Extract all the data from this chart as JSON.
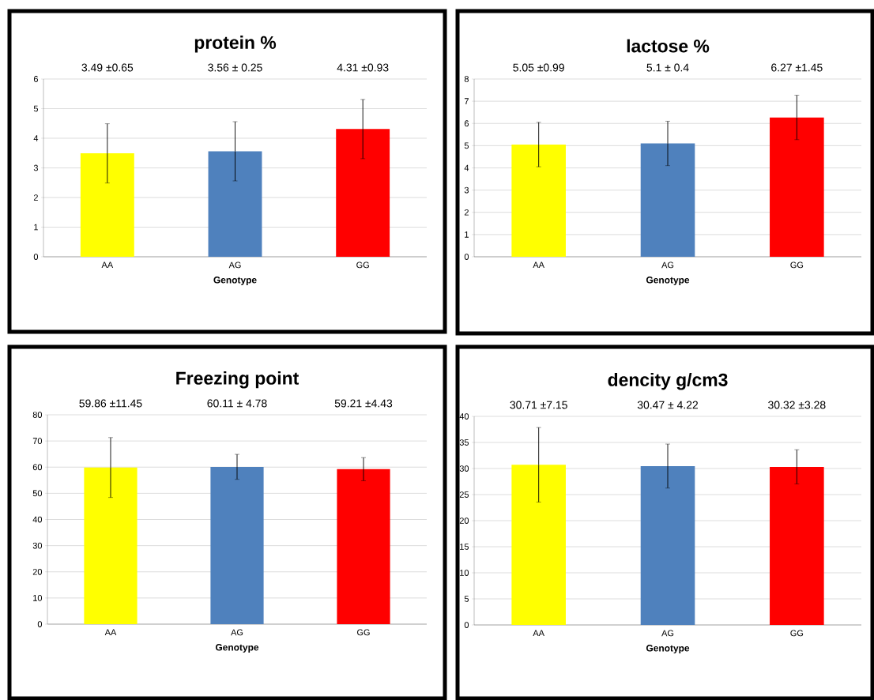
{
  "chart_data": [
    {
      "type": "bar",
      "title": "protein %",
      "xlabel": "Genotype",
      "categories": [
        "AA",
        "AG",
        "GG"
      ],
      "values": [
        3.49,
        3.56,
        4.31
      ],
      "errors": [
        1,
        1,
        1
      ],
      "annotations": [
        "3.49 ±0.65",
        "3.56 ± 0.25",
        "4.31 ±0.93"
      ],
      "colors": [
        "#ffff00",
        "#4f81bd",
        "#ff0000"
      ],
      "ylim": [
        0,
        6
      ],
      "yticks": [
        0,
        1,
        2,
        3,
        4,
        5,
        6
      ],
      "grid": "y"
    },
    {
      "type": "bar",
      "title": "lactose %",
      "xlabel": "Genotype",
      "categories": [
        "AA",
        "AG",
        "GG"
      ],
      "values": [
        5.05,
        5.1,
        6.27
      ],
      "errors": [
        1,
        1,
        1
      ],
      "annotations": [
        "5.05 ±0.99",
        "5.1 ± 0.4",
        "6.27 ±1.45"
      ],
      "colors": [
        "#ffff00",
        "#4f81bd",
        "#ff0000"
      ],
      "ylim": [
        0,
        8
      ],
      "yticks": [
        0,
        1,
        2,
        3,
        4,
        5,
        6,
        7,
        8
      ],
      "grid": "y"
    },
    {
      "type": "bar",
      "title": "Freezing point",
      "xlabel": "Genotype",
      "categories": [
        "AA",
        "AG",
        "GG"
      ],
      "values": [
        59.86,
        60.11,
        59.21
      ],
      "errors": [
        11.45,
        4.78,
        4.43
      ],
      "annotations": [
        "59.86 ±11.45",
        "60.11 ± 4.78",
        "59.21 ±4.43"
      ],
      "colors": [
        "#ffff00",
        "#4f81bd",
        "#ff0000"
      ],
      "ylim": [
        0,
        80
      ],
      "yticks": [
        0,
        10,
        20,
        30,
        40,
        50,
        60,
        70,
        80
      ],
      "grid": "y"
    },
    {
      "type": "bar",
      "title": "dencity g/cm3",
      "xlabel": "Genotype",
      "categories": [
        "AA",
        "AG",
        "GG"
      ],
      "values": [
        30.71,
        30.47,
        30.32
      ],
      "errors": [
        7.15,
        4.22,
        3.28
      ],
      "annotations": [
        "30.71 ±7.15",
        "30.47 ± 4.22",
        "30.32 ±3.28"
      ],
      "colors": [
        "#ffff00",
        "#4f81bd",
        "#ff0000"
      ],
      "ylim": [
        0,
        40
      ],
      "yticks": [
        0,
        5,
        10,
        15,
        20,
        25,
        30,
        35,
        40
      ],
      "grid": "y"
    }
  ]
}
